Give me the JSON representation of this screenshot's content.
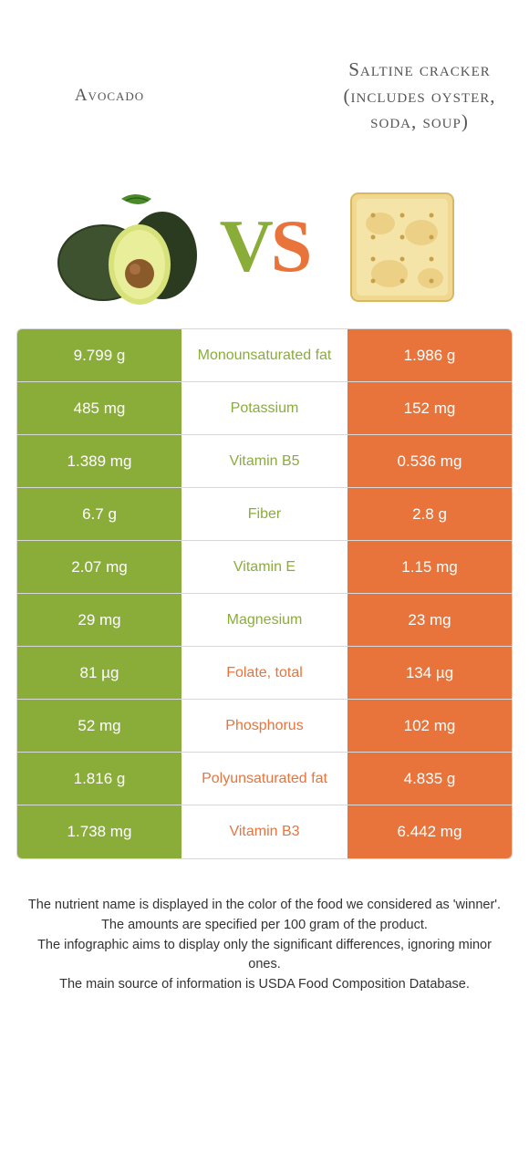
{
  "header": {
    "left_title": "Avocado",
    "right_title": "Saltine cracker (includes oyster, soda, soup)"
  },
  "vs": {
    "v": "V",
    "s": "S"
  },
  "colors": {
    "left": "#8aad3a",
    "right": "#e8743b",
    "border": "#d8d8d8",
    "bg": "#ffffff"
  },
  "rows": [
    {
      "left": "9.799 g",
      "label": "Monounsaturated fat",
      "right": "1.986 g",
      "winner": "left"
    },
    {
      "left": "485 mg",
      "label": "Potassium",
      "right": "152 mg",
      "winner": "left"
    },
    {
      "left": "1.389 mg",
      "label": "Vitamin B5",
      "right": "0.536 mg",
      "winner": "left"
    },
    {
      "left": "6.7 g",
      "label": "Fiber",
      "right": "2.8 g",
      "winner": "left"
    },
    {
      "left": "2.07 mg",
      "label": "Vitamin E",
      "right": "1.15 mg",
      "winner": "left"
    },
    {
      "left": "29 mg",
      "label": "Magnesium",
      "right": "23 mg",
      "winner": "left"
    },
    {
      "left": "81 µg",
      "label": "Folate, total",
      "right": "134 µg",
      "winner": "right"
    },
    {
      "left": "52 mg",
      "label": "Phosphorus",
      "right": "102 mg",
      "winner": "right"
    },
    {
      "left": "1.816 g",
      "label": "Polyunsaturated fat",
      "right": "4.835 g",
      "winner": "right"
    },
    {
      "left": "1.738 mg",
      "label": "Vitamin B3",
      "right": "6.442 mg",
      "winner": "right"
    }
  ],
  "footer": {
    "line1": "The nutrient name is displayed in the color of the food we considered as 'winner'.",
    "line2": "The amounts are specified per 100 gram of the product.",
    "line3": "The infographic aims to display only the significant differences, ignoring minor ones.",
    "line4": "The main source of information is USDA Food Composition Database."
  }
}
